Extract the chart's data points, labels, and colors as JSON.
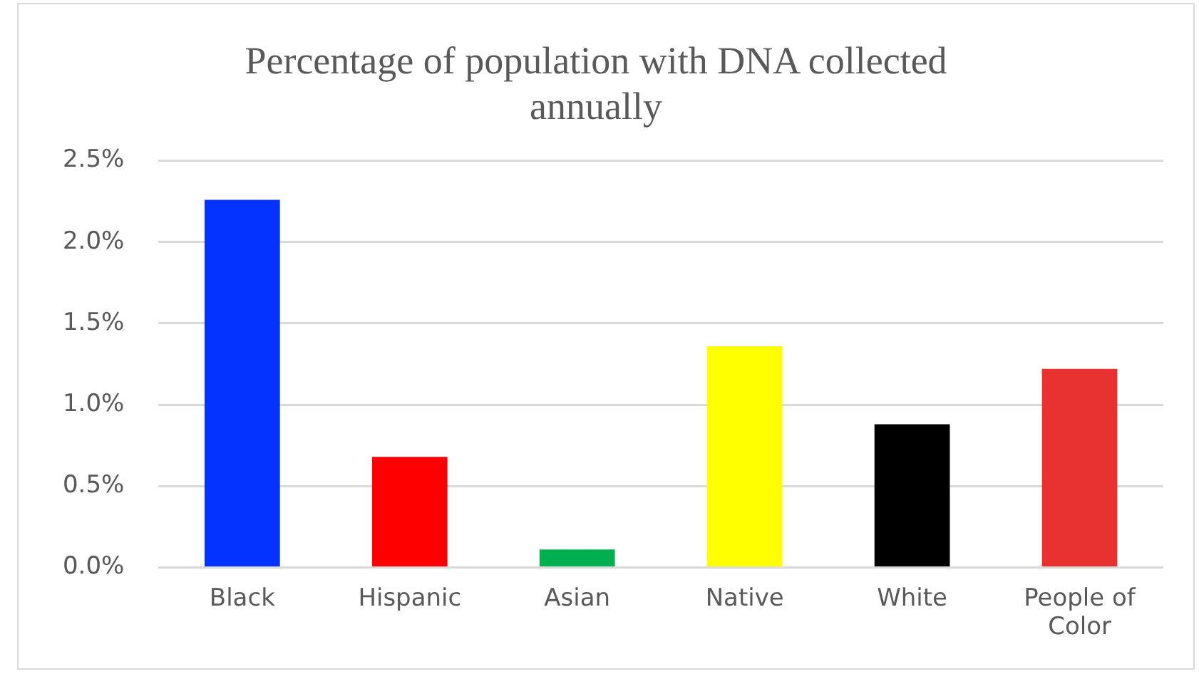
{
  "chart_data": {
    "type": "bar",
    "title": "Percentage of population with DNA collected annually",
    "categories": [
      "Black",
      "Hispanic",
      "Asian",
      "Native",
      "White",
      "People of Color"
    ],
    "values": [
      2.26,
      0.68,
      0.11,
      1.36,
      0.88,
      1.22
    ],
    "colors": [
      "#0433ff",
      "#ff0000",
      "#00b050",
      "#ffff00",
      "#000000",
      "#e8322f"
    ],
    "ylim": [
      0,
      2.5
    ],
    "yticks": [
      {
        "value": 0,
        "label": "0.0%"
      },
      {
        "value": 0.5,
        "label": "0.5%"
      },
      {
        "value": 1,
        "label": "1.0%"
      },
      {
        "value": 1.5,
        "label": "1.5%"
      },
      {
        "value": 2,
        "label": "2.0%"
      },
      {
        "value": 2.5,
        "label": "2.5%"
      }
    ],
    "grid": "y",
    "legend": false
  }
}
